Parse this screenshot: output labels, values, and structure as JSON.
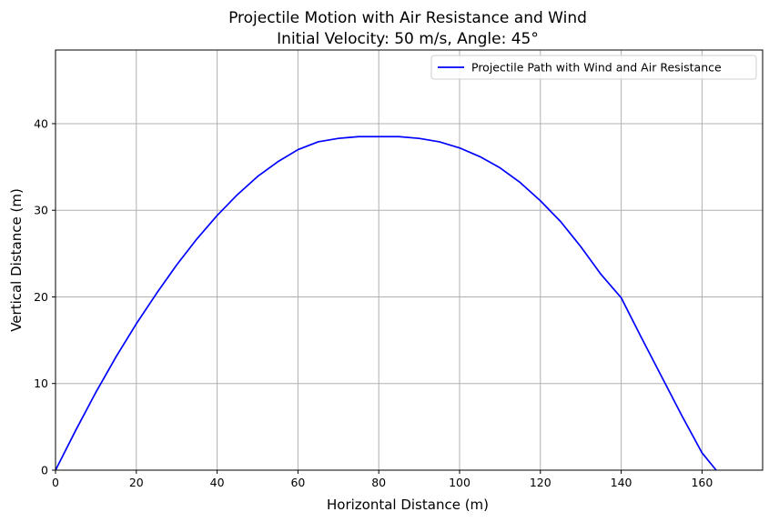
{
  "chart_data": {
    "type": "line",
    "title": "Projectile Motion with Air Resistance and Wind",
    "subtitle": "Initial Velocity: 50 m/s, Angle: 45°",
    "xlabel": "Horizontal Distance (m)",
    "ylabel": "Vertical Distance (m)",
    "xlim": [
      0,
      175
    ],
    "ylim": [
      0,
      48.5
    ],
    "xticks": [
      0,
      20,
      40,
      60,
      80,
      100,
      120,
      140,
      160
    ],
    "yticks": [
      0,
      10,
      20,
      30,
      40
    ],
    "grid": true,
    "legend_position": "top-right",
    "series": [
      {
        "name": "Projectile Path with Wind and Air Resistance",
        "color": "#0000ff",
        "x": [
          0,
          5,
          10,
          15,
          20,
          25,
          30,
          35,
          40,
          45,
          50,
          55,
          60,
          65,
          70,
          75,
          80,
          85,
          90,
          95,
          100,
          105,
          110,
          115,
          120,
          125,
          130,
          135,
          140,
          145,
          150,
          155,
          160,
          163.5
        ],
        "y": [
          0,
          4.6,
          9.0,
          13.1,
          16.9,
          20.4,
          23.7,
          26.7,
          29.4,
          31.8,
          33.9,
          35.6,
          37.0,
          37.9,
          38.3,
          38.5,
          38.5,
          38.5,
          38.3,
          37.9,
          37.2,
          36.2,
          34.9,
          33.2,
          31.1,
          28.7,
          25.8,
          22.6,
          19.9,
          15.3,
          10.8,
          6.3,
          2.0,
          0
        ]
      }
    ]
  }
}
